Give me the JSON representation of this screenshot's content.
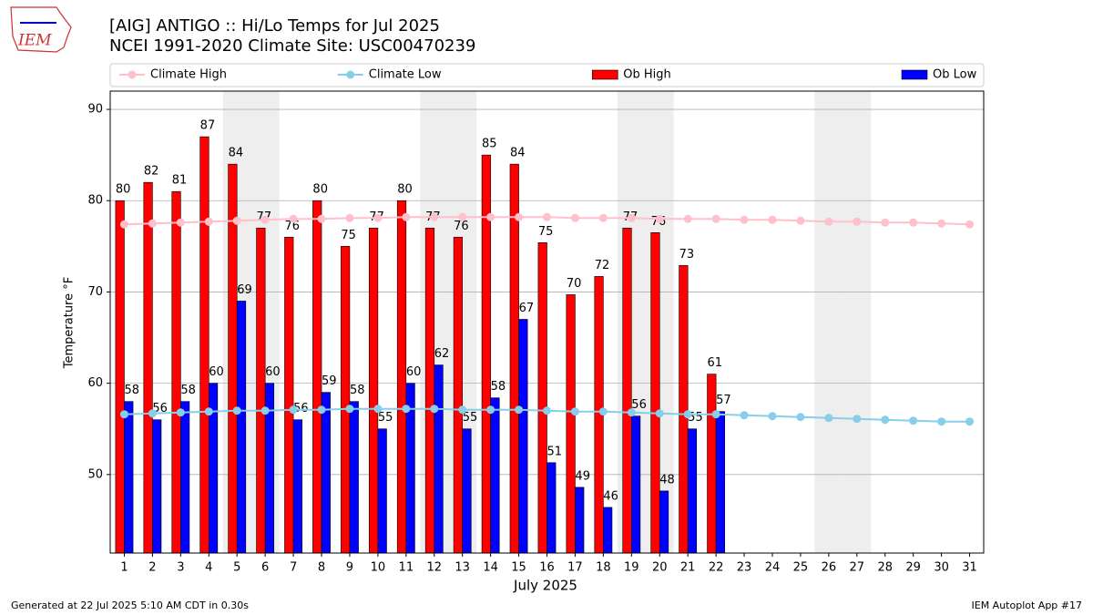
{
  "chart_data": {
    "type": "bar",
    "title": "[AIG] ANTIGO :: Hi/Lo Temps for Jul 2025",
    "subtitle": "NCEI 1991-2020 Climate Site: USC00470239",
    "logo_text": "IEM",
    "x_label": "July 2025",
    "y_label": "Temperature °F",
    "footer_left": "Generated at 22 Jul 2025 5:10 AM CDT in 0.30s",
    "footer_right": "IEM Autoplot App #17",
    "categories": [
      "1",
      "2",
      "3",
      "4",
      "5",
      "6",
      "7",
      "8",
      "9",
      "10",
      "11",
      "12",
      "13",
      "14",
      "15",
      "16",
      "17",
      "18",
      "19",
      "20",
      "21",
      "22",
      "23",
      "24",
      "25",
      "26",
      "27",
      "28",
      "29",
      "30",
      "31"
    ],
    "shaded_categories": [
      "5",
      "6",
      "12",
      "13",
      "19",
      "20",
      "26",
      "27"
    ],
    "shade_color": "#eeeeee",
    "series": [
      {
        "name": "Climate High",
        "kind": "line",
        "color": "#ffc0cb",
        "values": [
          77.4,
          77.5,
          77.6,
          77.7,
          77.8,
          77.9,
          78.0,
          78.0,
          78.1,
          78.1,
          78.2,
          78.2,
          78.2,
          78.2,
          78.2,
          78.2,
          78.1,
          78.1,
          78.1,
          78.0,
          78.0,
          78.0,
          77.9,
          77.9,
          77.8,
          77.7,
          77.7,
          77.6,
          77.6,
          77.5,
          77.4
        ]
      },
      {
        "name": "Climate Low",
        "kind": "line",
        "color": "#87ceeb",
        "values": [
          56.6,
          56.7,
          56.8,
          56.9,
          57.0,
          57.0,
          57.1,
          57.1,
          57.2,
          57.2,
          57.2,
          57.2,
          57.1,
          57.1,
          57.1,
          57.0,
          56.9,
          56.9,
          56.8,
          56.7,
          56.6,
          56.6,
          56.5,
          56.4,
          56.3,
          56.2,
          56.1,
          56.0,
          55.9,
          55.8,
          55.8
        ]
      },
      {
        "name": "Ob High",
        "kind": "bar",
        "color": "#ff0000",
        "values": [
          80,
          82,
          81,
          87,
          84,
          77,
          76,
          80,
          75,
          77,
          80,
          77,
          76,
          85,
          84,
          75.4,
          69.7,
          71.7,
          77,
          76.5,
          72.9,
          61,
          null,
          null,
          null,
          null,
          null,
          null,
          null,
          null,
          null
        ],
        "value_labels": [
          "80",
          "82",
          "81",
          "87",
          "84",
          "77",
          "76",
          "80",
          "75",
          "77",
          "80",
          "77",
          "76",
          "85",
          "84",
          "75",
          "70",
          "72",
          "77",
          "76",
          "73",
          "61",
          null,
          null,
          null,
          null,
          null,
          null,
          null,
          null,
          null
        ]
      },
      {
        "name": "Ob Low",
        "kind": "bar",
        "color": "#0000ff",
        "values": [
          58,
          56,
          58,
          60,
          69,
          60,
          56,
          59,
          58,
          55,
          60,
          62,
          55,
          58.4,
          67,
          51.3,
          48.6,
          46.4,
          56.4,
          48.2,
          55,
          56.9,
          null,
          null,
          null,
          null,
          null,
          null,
          null,
          null,
          null
        ],
        "value_labels": [
          "58",
          "56",
          "58",
          "60",
          "69",
          "60",
          "56",
          "59",
          "58",
          "55",
          "60",
          "62",
          "55",
          "58",
          "67",
          "51",
          "49",
          "46",
          "56",
          "48",
          "55",
          "57",
          null,
          null,
          null,
          null,
          null,
          null,
          null,
          null,
          null
        ]
      }
    ],
    "ylim": [
      41.4,
      92
    ],
    "yticks": [
      50,
      60,
      70,
      80,
      90
    ],
    "grid": true,
    "legend": "top"
  }
}
